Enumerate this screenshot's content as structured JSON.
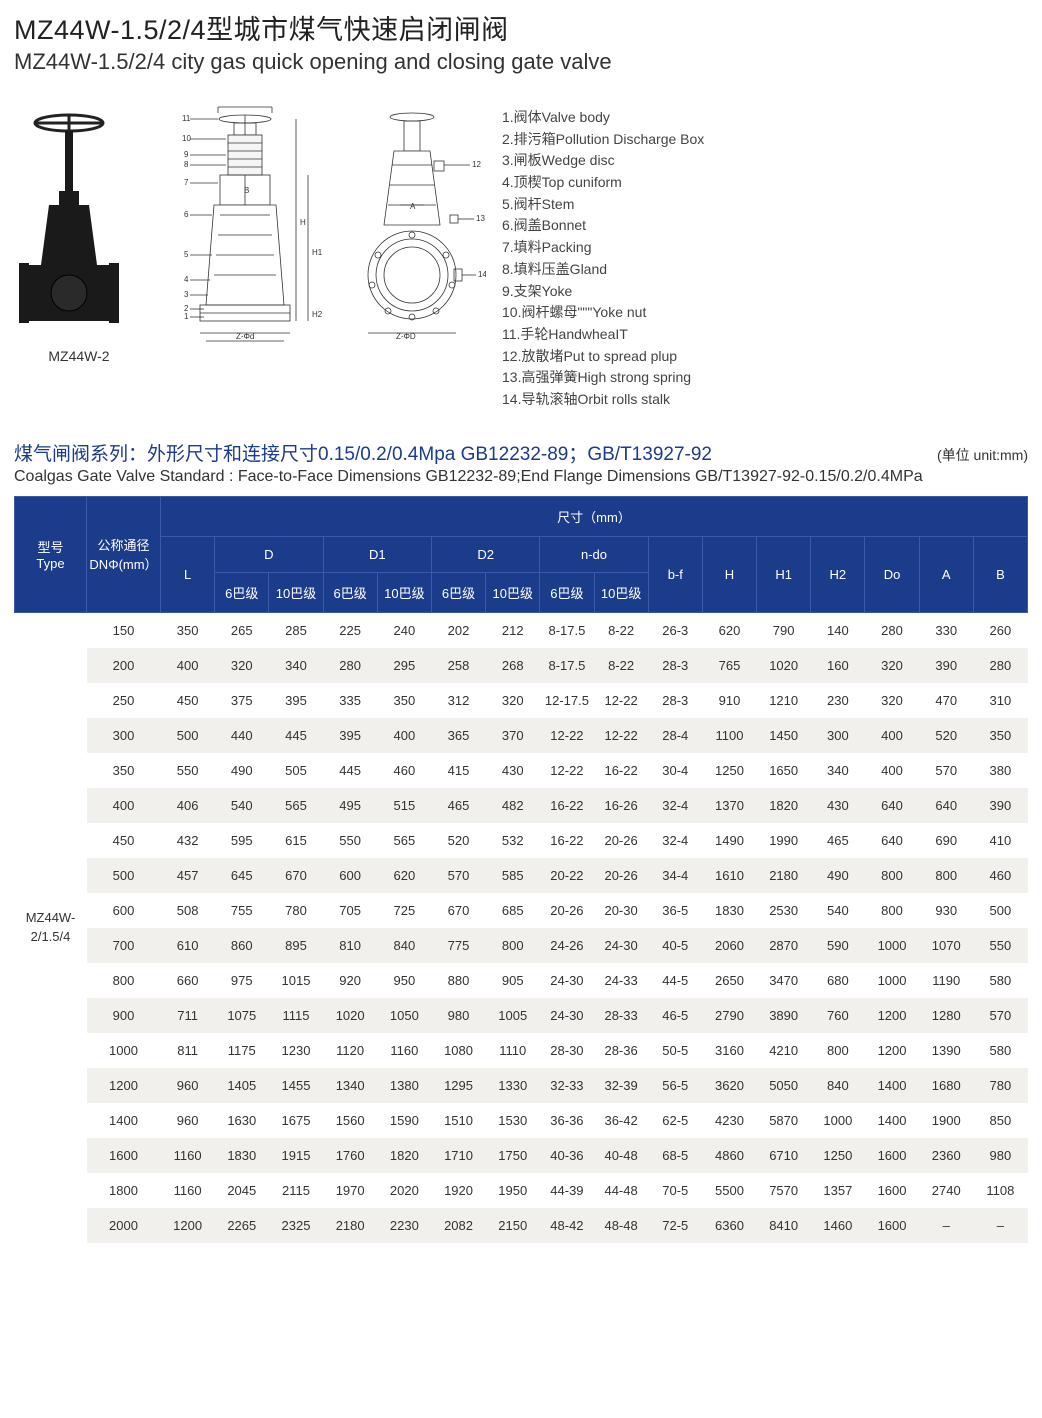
{
  "title_cn": "MZ44W-1.5/2/4型城市煤气快速启闭闸阀",
  "title_en": "MZ44W-1.5/2/4 city gas quick opening and closing gate valve",
  "photo_label": "MZ44W-2",
  "parts": [
    "1.阀体Valve body",
    "2.排污箱Pollution Discharge Box",
    "3.闸板Wedge disc",
    "4.顶楔Top cuniform",
    "5.阀杆Stem",
    "6.阀盖Bonnet",
    "7.填料Packing",
    "8.填料压盖Gland",
    "9.支架Yoke",
    "10.阀杆螺母\"\"\"Yoke nut",
    "11.手轮HandwheaIT",
    "12.放散堵Put to spread plup",
    "13.高强弹簧High strong spring",
    "14.导轨滚轴Orbit rolls stalk"
  ],
  "section_cn": "煤气闸阀系列：外形尺寸和连接尺寸0.15/0.2/0.4Mpa GB12232-89；GB/T13927-92",
  "unit_label": "(单位 unit:mm)",
  "section_en": "Coalgas Gate Valve  Standard : Face-to-Face Dimensions GB12232-89;End Flange Dimensions GB/T13927-92-0.15/0.2/0.4MPa",
  "thead": {
    "type": "型号\nType",
    "dn": "公称通径\nDNΦ(mm）",
    "dim": "尺寸（mm）",
    "L": "L",
    "D": "D",
    "D1": "D1",
    "D2": "D2",
    "ndo": "n-do",
    "sub6": "6巴级",
    "sub10": "10巴级",
    "bf": "b-f",
    "H": "H",
    "H1": "H1",
    "H2": "H2",
    "Do": "Do",
    "A": "A",
    "B": "B"
  },
  "type_label": "MZ44W-\n2/1.5/4",
  "rows": [
    [
      "150",
      "350",
      "265",
      "285",
      "225",
      "240",
      "202",
      "212",
      "8-17.5",
      "8-22",
      "26-3",
      "620",
      "790",
      "140",
      "280",
      "330",
      "260"
    ],
    [
      "200",
      "400",
      "320",
      "340",
      "280",
      "295",
      "258",
      "268",
      "8-17.5",
      "8-22",
      "28-3",
      "765",
      "1020",
      "160",
      "320",
      "390",
      "280"
    ],
    [
      "250",
      "450",
      "375",
      "395",
      "335",
      "350",
      "312",
      "320",
      "12-17.5",
      "12-22",
      "28-3",
      "910",
      "1210",
      "230",
      "320",
      "470",
      "310"
    ],
    [
      "300",
      "500",
      "440",
      "445",
      "395",
      "400",
      "365",
      "370",
      "12-22",
      "12-22",
      "28-4",
      "1100",
      "1450",
      "300",
      "400",
      "520",
      "350"
    ],
    [
      "350",
      "550",
      "490",
      "505",
      "445",
      "460",
      "415",
      "430",
      "12-22",
      "16-22",
      "30-4",
      "1250",
      "1650",
      "340",
      "400",
      "570",
      "380"
    ],
    [
      "400",
      "406",
      "540",
      "565",
      "495",
      "515",
      "465",
      "482",
      "16-22",
      "16-26",
      "32-4",
      "1370",
      "1820",
      "430",
      "640",
      "640",
      "390"
    ],
    [
      "450",
      "432",
      "595",
      "615",
      "550",
      "565",
      "520",
      "532",
      "16-22",
      "20-26",
      "32-4",
      "1490",
      "1990",
      "465",
      "640",
      "690",
      "410"
    ],
    [
      "500",
      "457",
      "645",
      "670",
      "600",
      "620",
      "570",
      "585",
      "20-22",
      "20-26",
      "34-4",
      "1610",
      "2180",
      "490",
      "800",
      "800",
      "460"
    ],
    [
      "600",
      "508",
      "755",
      "780",
      "705",
      "725",
      "670",
      "685",
      "20-26",
      "20-30",
      "36-5",
      "1830",
      "2530",
      "540",
      "800",
      "930",
      "500"
    ],
    [
      "700",
      "610",
      "860",
      "895",
      "810",
      "840",
      "775",
      "800",
      "24-26",
      "24-30",
      "40-5",
      "2060",
      "2870",
      "590",
      "1000",
      "1070",
      "550"
    ],
    [
      "800",
      "660",
      "975",
      "1015",
      "920",
      "950",
      "880",
      "905",
      "24-30",
      "24-33",
      "44-5",
      "2650",
      "3470",
      "680",
      "1000",
      "1190",
      "580"
    ],
    [
      "900",
      "711",
      "1075",
      "1115",
      "1020",
      "1050",
      "980",
      "1005",
      "24-30",
      "28-33",
      "46-5",
      "2790",
      "3890",
      "760",
      "1200",
      "1280",
      "570"
    ],
    [
      "1000",
      "811",
      "1175",
      "1230",
      "1120",
      "1160",
      "1080",
      "1110",
      "28-30",
      "28-36",
      "50-5",
      "3160",
      "4210",
      "800",
      "1200",
      "1390",
      "580"
    ],
    [
      "1200",
      "960",
      "1405",
      "1455",
      "1340",
      "1380",
      "1295",
      "1330",
      "32-33",
      "32-39",
      "56-5",
      "3620",
      "5050",
      "840",
      "1400",
      "1680",
      "780"
    ],
    [
      "1400",
      "960",
      "1630",
      "1675",
      "1560",
      "1590",
      "1510",
      "1530",
      "36-36",
      "36-42",
      "62-5",
      "4230",
      "5870",
      "1000",
      "1400",
      "1900",
      "850"
    ],
    [
      "1600",
      "1160",
      "1830",
      "1915",
      "1760",
      "1820",
      "1710",
      "1750",
      "40-36",
      "40-48",
      "68-5",
      "4860",
      "6710",
      "1250",
      "1600",
      "2360",
      "980"
    ],
    [
      "1800",
      "1160",
      "2045",
      "2115",
      "1970",
      "2020",
      "1920",
      "1950",
      "44-39",
      "44-48",
      "70-5",
      "5500",
      "7570",
      "1357",
      "1600",
      "2740",
      "1108"
    ],
    [
      "2000",
      "1200",
      "2265",
      "2325",
      "2180",
      "2230",
      "2082",
      "2150",
      "48-42",
      "48-48",
      "72-5",
      "6360",
      "8410",
      "1460",
      "1600",
      "–",
      "–"
    ]
  ],
  "colors": {
    "header_bg": "#1B3B8B",
    "header_border": "#3a5aa8",
    "row_alt": "#f1f0ec",
    "accent": "#1B3B8B"
  }
}
